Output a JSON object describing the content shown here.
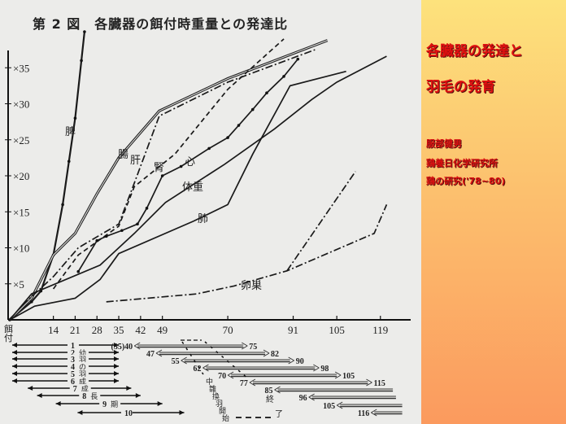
{
  "figure_title": "第 2 図　各臓器の餌付時重量との発達比",
  "side_panel": {
    "heading_line1": "各臓器の発達と",
    "heading_line2": "羽毛の発育",
    "author": "服部健男",
    "institute": "鶏養日化学研究所",
    "source": "鶏の研究('78~80)"
  },
  "colors": {
    "panel_top": "#fde27c",
    "panel_bottom": "#fb9a5e",
    "heading": "#e01010",
    "scan_bg": "#ececea",
    "ink": "#222222"
  },
  "chart_data": {
    "type": "line",
    "title": "第 2 図　各臓器の餌付時重量との発達比",
    "x_origin_label": "餌付",
    "x_ticks": [
      14,
      21,
      28,
      35,
      42,
      49,
      70,
      91,
      105,
      119
    ],
    "y_ticks": [
      5,
      10,
      15,
      20,
      25,
      30,
      35
    ],
    "y_tick_labels": [
      "×5",
      "×10",
      "×15",
      "×20",
      "×25",
      "×30",
      "×35"
    ],
    "xlim": [
      0,
      126
    ],
    "ylim": [
      0,
      40
    ],
    "grid": false,
    "series": [
      {
        "name": "脾",
        "style": "solid-ticked",
        "points": [
          [
            0,
            0
          ],
          [
            7,
            2.5
          ],
          [
            10,
            4
          ],
          [
            14,
            9
          ],
          [
            17,
            16
          ],
          [
            19,
            22
          ],
          [
            21,
            28
          ],
          [
            23,
            36
          ],
          [
            24,
            40
          ]
        ]
      },
      {
        "name": "腸",
        "style": "double",
        "points": [
          [
            0,
            0
          ],
          [
            7,
            3
          ],
          [
            14,
            9
          ],
          [
            21,
            12
          ],
          [
            28,
            17.5
          ],
          [
            35,
            22.5
          ],
          [
            48,
            29
          ],
          [
            70,
            33.5
          ],
          [
            102,
            38.8
          ]
        ]
      },
      {
        "name": "肝",
        "style": "dashdot",
        "points": [
          [
            4,
            2
          ],
          [
            14,
            6
          ],
          [
            22,
            10
          ],
          [
            35,
            13.3
          ],
          [
            40,
            19
          ],
          [
            48,
            28.3
          ],
          [
            70,
            33
          ],
          [
            98,
            37.5
          ]
        ]
      },
      {
        "name": "腎",
        "style": "dashed",
        "points": [
          [
            14,
            4.3
          ],
          [
            22,
            9
          ],
          [
            35,
            13
          ],
          [
            40,
            18.5
          ],
          [
            53,
            23
          ],
          [
            70,
            32
          ],
          [
            88,
            39
          ]
        ]
      },
      {
        "name": "心",
        "style": "solid-dotted",
        "points": [
          [
            22,
            6.7
          ],
          [
            28,
            11
          ],
          [
            31,
            11.6
          ],
          [
            36,
            12.4
          ],
          [
            41,
            13.3
          ],
          [
            44,
            15.5
          ],
          [
            49,
            20
          ],
          [
            55,
            21.3
          ],
          [
            64,
            23.8
          ],
          [
            70,
            25.3
          ],
          [
            73.5,
            27
          ],
          [
            78,
            29.2
          ],
          [
            82.5,
            31.5
          ],
          [
            88,
            33.8
          ],
          [
            92.5,
            36.2
          ]
        ]
      },
      {
        "name": "体重",
        "style": "solid",
        "points": [
          [
            0,
            0
          ],
          [
            7,
            3.6
          ],
          [
            29,
            7.6
          ],
          [
            40,
            12
          ],
          [
            50,
            16.3
          ],
          [
            69,
            21.6
          ],
          [
            85,
            26.5
          ],
          [
            97,
            30.6
          ],
          [
            105,
            33
          ],
          [
            121,
            36.6
          ]
        ]
      },
      {
        "name": "肺",
        "style": "solid",
        "points": [
          [
            0,
            0
          ],
          [
            8,
            1.9
          ],
          [
            21,
            3
          ],
          [
            29,
            5.6
          ],
          [
            35,
            9.2
          ],
          [
            59,
            13.7
          ],
          [
            70,
            16
          ],
          [
            78,
            23
          ],
          [
            90,
            32.5
          ],
          [
            108,
            34.5
          ]
        ]
      },
      {
        "name": "卵巣",
        "style": "dashdot",
        "points": [
          [
            31,
            2.5
          ],
          [
            60,
            3.6
          ],
          [
            72,
            4.7
          ],
          [
            89,
            6.8
          ],
          [
            117,
            12
          ],
          [
            121,
            16
          ]
        ]
      },
      {
        "name": "",
        "style": "dashdot",
        "points": [
          [
            89,
            6.8
          ],
          [
            111,
            20.6
          ]
        ]
      }
    ]
  },
  "feather_chart": {
    "first_feather_rows": [
      {
        "label": "1",
        "from": 0,
        "to": 35
      },
      {
        "label": "2",
        "note": "幼",
        "from": 0,
        "to": 35
      },
      {
        "label": "3",
        "note": "羽",
        "from": 0,
        "to": 35
      },
      {
        "label": "4",
        "note": "の",
        "from": 0,
        "to": 35
      },
      {
        "label": "5",
        "note": "羽",
        "from": 0,
        "to": 35
      },
      {
        "label": "6",
        "note": "成",
        "from": 0,
        "to": 35
      },
      {
        "label": "7",
        "note": "成",
        "from": 5,
        "to": 39
      },
      {
        "label": "8",
        "note": "長",
        "from": 8,
        "to": 42
      },
      {
        "label": "9",
        "note": "期",
        "from": 14,
        "to": 49
      },
      {
        "label": "10",
        "from": 21,
        "to": 56
      }
    ],
    "molt_rows": [
      {
        "start_label": "(35)40",
        "end_label": "75",
        "from": 40,
        "to": 75
      },
      {
        "start_label": "47",
        "end_label": "82",
        "from": 47,
        "to": 82
      },
      {
        "start_label": "55",
        "end_label": "90",
        "from": 55,
        "to": 90
      },
      {
        "start_label": "62",
        "end_label": "98",
        "from": 62,
        "to": 98
      },
      {
        "start_label": "70",
        "end_label": "105",
        "from": 70,
        "to": 105
      },
      {
        "start_label": "77",
        "end_label": "115",
        "from": 77,
        "to": 115
      },
      {
        "start_label": "85",
        "end_label": "",
        "from": 85,
        "to": 123
      },
      {
        "start_label": "96",
        "end_label": "",
        "from": 96,
        "to": 124
      },
      {
        "start_label": "105",
        "end_label": "",
        "from": 105,
        "to": 126
      },
      {
        "start_label": "116",
        "end_label": "",
        "from": 116,
        "to": 126
      }
    ],
    "molt_start_label": "中雛換羽開始",
    "molt_end_label_1": "終",
    "molt_end_label_2": "了"
  }
}
